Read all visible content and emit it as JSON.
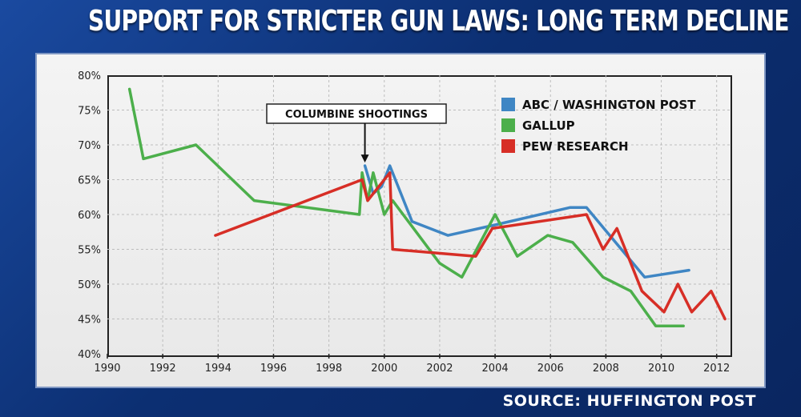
{
  "header": {
    "title": "SUPPORT FOR STRICTER GUN LAWS: LONG TERM DECLINE"
  },
  "footer": {
    "source": "SOURCE: HUFFINGTON POST"
  },
  "chart_data": {
    "type": "line",
    "title": "SUPPORT FOR STRICTER GUN LAWS: LONG TERM DECLINE",
    "xlabel": "",
    "ylabel": "",
    "xlim": [
      1990,
      2012.5
    ],
    "ylim": [
      40,
      80
    ],
    "x_ticks": [
      "1990",
      "1992",
      "1994",
      "1996",
      "1998",
      "2000",
      "2002",
      "2004",
      "2006",
      "2008",
      "2010",
      "2012"
    ],
    "y_ticks": [
      "40%",
      "45%",
      "50%",
      "55%",
      "60%",
      "65%",
      "70%",
      "75%",
      "80%"
    ],
    "grid": true,
    "legend_position": "top-right",
    "annotation": {
      "label": "COLUMBINE SHOOTINGS",
      "x": 1999.3,
      "y": 67
    },
    "series": [
      {
        "name": "ABC / WASHINGTON POST",
        "color": "#3f86c4",
        "x": [
          1999.3,
          1999.6,
          1999.9,
          2000.2,
          2001.0,
          2002.3,
          2004.0,
          2006.7,
          2007.3,
          2009.4,
          2011.0
        ],
        "y": [
          67,
          63,
          64,
          67,
          59,
          57,
          58.5,
          61,
          61,
          51,
          52
        ]
      },
      {
        "name": "GALLUP",
        "color": "#4caf4b",
        "x": [
          1990.8,
          1991.3,
          1993.2,
          1995.3,
          1999.1,
          1999.2,
          1999.4,
          1999.6,
          2000.0,
          2000.3,
          2002.0,
          2002.8,
          2004.0,
          2004.8,
          2005.9,
          2006.8,
          2007.9,
          2008.9,
          2009.8,
          2010.8
        ],
        "y": [
          78,
          68,
          70,
          62,
          60,
          66,
          62,
          66,
          60,
          62,
          53,
          51,
          60,
          54,
          57,
          56,
          51,
          49,
          44,
          44
        ]
      },
      {
        "name": "PEW RESEARCH",
        "color": "#d72e26",
        "x": [
          1993.9,
          1999.2,
          1999.4,
          2000.2,
          2000.3,
          2003.3,
          2003.9,
          2007.3,
          2007.9,
          2008.4,
          2009.3,
          2010.1,
          2010.6,
          2011.1,
          2011.8,
          2012.3
        ],
        "y": [
          57,
          65,
          62,
          66,
          55,
          54,
          58,
          60,
          55,
          58,
          49,
          46,
          50,
          46,
          49,
          45
        ]
      }
    ]
  }
}
